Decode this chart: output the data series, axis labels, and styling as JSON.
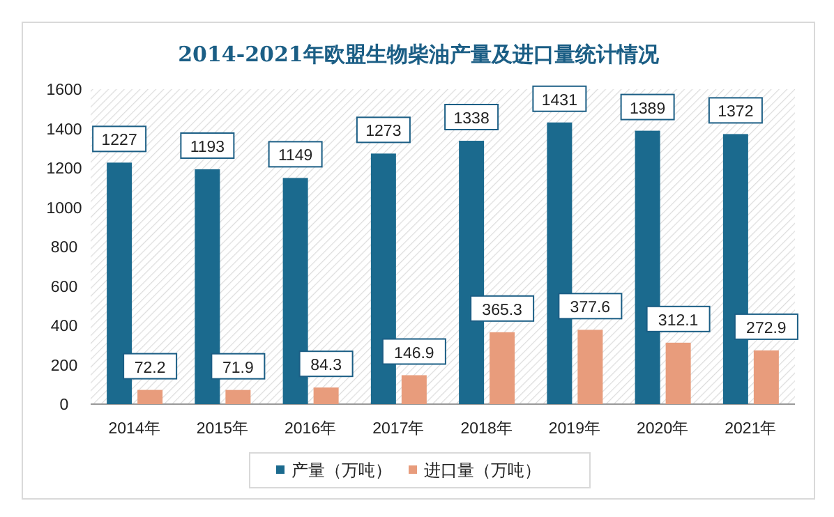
{
  "chart_data": {
    "type": "bar",
    "title": "2014-2021年欧盟生物柴油产量及进口量统计情况",
    "categories": [
      "2014年",
      "2015年",
      "2016年",
      "2017年",
      "2018年",
      "2019年",
      "2020年",
      "2021年"
    ],
    "series": [
      {
        "name": "产量（万吨）",
        "color": "#1b6a8e",
        "values": [
          1227,
          1193,
          1149,
          1273,
          1338,
          1431,
          1389,
          1372
        ]
      },
      {
        "name": "进口量（万吨）",
        "color": "#e89c7c",
        "values": [
          72.2,
          71.9,
          84.3,
          146.9,
          365.3,
          377.6,
          312.1,
          272.9
        ]
      }
    ],
    "ylim": [
      0,
      1600
    ],
    "yticks": [
      0,
      200,
      400,
      600,
      800,
      1000,
      1200,
      1400,
      1600
    ],
    "grid": false,
    "legend": "bottom",
    "data_labels": true
  }
}
